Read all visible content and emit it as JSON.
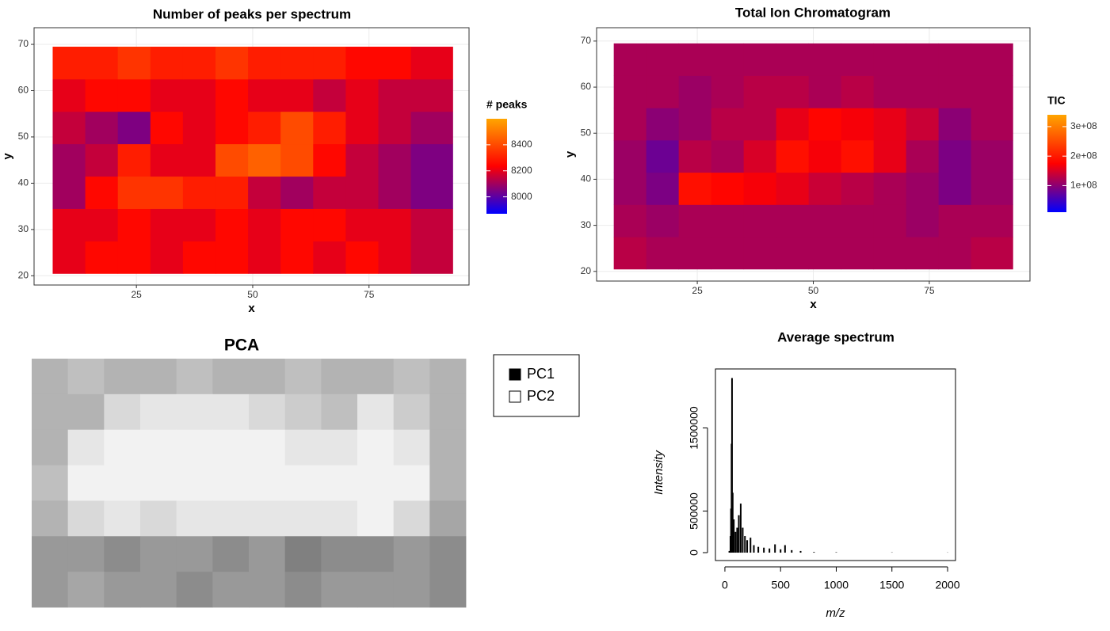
{
  "chart_data": [
    {
      "type": "heatmap",
      "title": "Number of peaks per spectrum",
      "x_label": "x",
      "y_label": "y",
      "legend_title": "# peaks",
      "xlim": [
        3,
        96.5
      ],
      "ylim": [
        18,
        73.6
      ],
      "xticks": [
        25,
        50,
        75
      ],
      "yticks": [
        20,
        30,
        40,
        50,
        60,
        70
      ],
      "grid": true,
      "xbins": [
        7,
        14,
        21,
        28,
        35,
        42,
        49,
        56,
        63,
        70,
        77,
        84,
        93
      ],
      "ybins": [
        20.5,
        27.5,
        34.5,
        41.5,
        48.5,
        55.5,
        62.5,
        69.5
      ],
      "colors": [
        "#0000ff",
        "#ff0000",
        "#ffa500"
      ],
      "color_range": [
        7870,
        8600
      ],
      "colorbar_ticks": [
        8000,
        8200,
        8400
      ],
      "z": [
        [
          8200,
          8250,
          8250,
          8200,
          8250,
          8250,
          8200,
          8250,
          8200,
          8250,
          8200,
          8150
        ],
        [
          8200,
          8200,
          8250,
          8200,
          8200,
          8250,
          8200,
          8250,
          8250,
          8200,
          8200,
          8150
        ],
        [
          8100,
          8250,
          8350,
          8350,
          8300,
          8300,
          8150,
          8100,
          8150,
          8150,
          8100,
          8050
        ],
        [
          8100,
          8150,
          8300,
          8200,
          8200,
          8400,
          8450,
          8400,
          8250,
          8150,
          8100,
          8050
        ],
        [
          8150,
          8100,
          8050,
          8250,
          8200,
          8250,
          8300,
          8400,
          8300,
          8200,
          8150,
          8100
        ],
        [
          8200,
          8250,
          8250,
          8200,
          8200,
          8250,
          8200,
          8200,
          8150,
          8200,
          8150,
          8150
        ],
        [
          8300,
          8300,
          8350,
          8300,
          8300,
          8350,
          8300,
          8300,
          8300,
          8250,
          8250,
          8200
        ]
      ]
    },
    {
      "type": "heatmap",
      "title": "Total Ion Chromatogram",
      "x_label": "x",
      "y_label": "y",
      "legend_title": "TIC",
      "xlim": [
        3.3,
        96.7
      ],
      "ylim": [
        17.9,
        72.9
      ],
      "xticks": [
        25,
        50,
        75
      ],
      "yticks": [
        20,
        30,
        40,
        50,
        60,
        70
      ],
      "grid": true,
      "xbins": [
        7,
        14,
        21,
        28,
        35,
        42,
        49,
        56,
        63,
        70,
        77,
        84,
        93
      ],
      "ybins": [
        20.5,
        27.5,
        34.5,
        41.5,
        48.5,
        55.5,
        62.5,
        69.5
      ],
      "colors": [
        "#0000ff",
        "#ff0000",
        "#ffa500"
      ],
      "color_range": [
        10000000.0,
        340000000.0
      ],
      "colorbar_ticks": [
        {
          "value": 100000000.0,
          "label": "1e+08"
        },
        {
          "value": 200000000.0,
          "label": "2e+08"
        },
        {
          "value": 300000000.0,
          "label": "3e+08"
        }
      ],
      "z": [
        [
          130000000.0,
          120000000.0,
          120000000.0,
          120000000.0,
          120000000.0,
          120000000.0,
          120000000.0,
          120000000.0,
          120000000.0,
          120000000.0,
          120000000.0,
          130000000.0
        ],
        [
          120000000.0,
          110000000.0,
          120000000.0,
          120000000.0,
          120000000.0,
          120000000.0,
          120000000.0,
          120000000.0,
          120000000.0,
          110000000.0,
          120000000.0,
          120000000.0
        ],
        [
          110000000.0,
          90000000.0,
          190000000.0,
          180000000.0,
          170000000.0,
          160000000.0,
          140000000.0,
          130000000.0,
          120000000.0,
          110000000.0,
          90000000.0,
          110000000.0
        ],
        [
          110000000.0,
          80000000.0,
          130000000.0,
          120000000.0,
          150000000.0,
          190000000.0,
          170000000.0,
          190000000.0,
          160000000.0,
          120000000.0,
          90000000.0,
          110000000.0
        ],
        [
          120000000.0,
          100000000.0,
          110000000.0,
          130000000.0,
          130000000.0,
          160000000.0,
          180000000.0,
          170000000.0,
          160000000.0,
          140000000.0,
          100000000.0,
          120000000.0
        ],
        [
          120000000.0,
          120000000.0,
          110000000.0,
          120000000.0,
          130000000.0,
          130000000.0,
          120000000.0,
          130000000.0,
          120000000.0,
          120000000.0,
          120000000.0,
          120000000.0
        ],
        [
          120000000.0,
          120000000.0,
          120000000.0,
          120000000.0,
          120000000.0,
          120000000.0,
          120000000.0,
          120000000.0,
          120000000.0,
          120000000.0,
          120000000.0,
          120000000.0
        ]
      ]
    },
    {
      "type": "image",
      "title": "PCA",
      "series": [
        {
          "name": "PC1",
          "color": "#000000"
        },
        {
          "name": "PC2",
          "color": "#ffffff"
        }
      ],
      "values": [
        [
          0.3,
          0.25,
          0.3,
          0.3,
          0.25,
          0.3,
          0.3,
          0.25,
          0.3,
          0.3,
          0.25,
          0.3
        ],
        [
          0.3,
          0.3,
          0.15,
          0.1,
          0.1,
          0.1,
          0.15,
          0.2,
          0.25,
          0.1,
          0.2,
          0.3
        ],
        [
          0.3,
          0.1,
          0.05,
          0.05,
          0.05,
          0.05,
          0.05,
          0.1,
          0.1,
          0.05,
          0.1,
          0.3
        ],
        [
          0.25,
          0.05,
          0.05,
          0.05,
          0.05,
          0.05,
          0.05,
          0.05,
          0.05,
          0.05,
          0.05,
          0.3
        ],
        [
          0.3,
          0.15,
          0.1,
          0.15,
          0.1,
          0.1,
          0.1,
          0.1,
          0.1,
          0.05,
          0.15,
          0.35
        ],
        [
          0.4,
          0.4,
          0.45,
          0.4,
          0.4,
          0.45,
          0.4,
          0.5,
          0.45,
          0.45,
          0.4,
          0.45
        ],
        [
          0.4,
          0.35,
          0.4,
          0.4,
          0.45,
          0.4,
          0.4,
          0.45,
          0.4,
          0.4,
          0.4,
          0.45
        ]
      ]
    },
    {
      "type": "stem",
      "title": "Average spectrum",
      "x_label": "m/z",
      "y_label": "Intensity",
      "color": "#000000",
      "xlim": [
        -85,
        2071
      ],
      "ylim": [
        -95000,
        2210000
      ],
      "xticks": [
        0,
        500,
        1000,
        1500,
        2000
      ],
      "yticks": [
        0,
        500000,
        1500000
      ],
      "x": [
        40,
        50,
        55,
        60,
        64,
        70,
        80,
        95,
        110,
        125,
        142,
        160,
        180,
        200,
        230,
        260,
        300,
        350,
        400,
        450,
        500,
        540,
        600,
        680,
        800,
        1000,
        1500,
        2000
      ],
      "values": [
        20000,
        200000,
        530000,
        1310000,
        2100000,
        720000,
        400000,
        250000,
        300000,
        450000,
        590000,
        300000,
        200000,
        150000,
        180000,
        90000,
        70000,
        60000,
        50000,
        100000,
        40000,
        90000,
        30000,
        20000,
        8000,
        5000,
        3000,
        2000
      ]
    }
  ]
}
